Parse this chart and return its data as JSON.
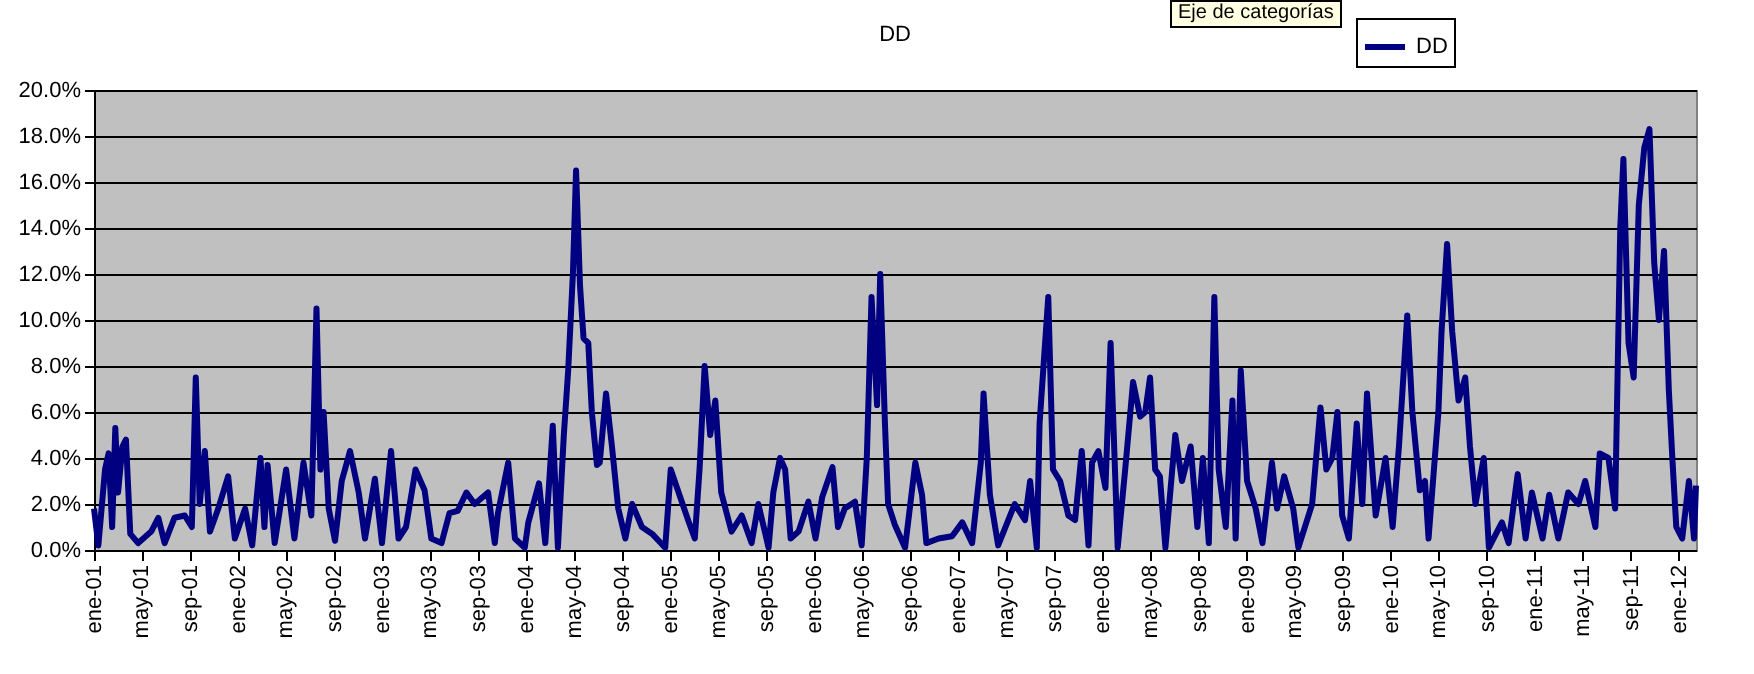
{
  "chart_data": {
    "type": "line",
    "title": "DD",
    "annotations": [
      "Eje de categorías"
    ],
    "x": [
      "2001-01-01",
      "2001-01-12",
      "2001-01-29",
      "2001-02-07",
      "2001-02-16",
      "2001-02-24",
      "2001-03-03",
      "2001-03-14",
      "2001-03-23",
      "2001-04-03",
      "2001-04-23",
      "2001-05-26",
      "2001-06-13",
      "2001-06-29",
      "2001-07-24",
      "2001-08-19",
      "2001-09-06",
      "2001-09-16",
      "2001-09-26",
      "2001-10-09",
      "2001-10-22",
      "2001-11-12",
      "2001-12-07",
      "2001-12-24",
      "2002-01-19",
      "2002-02-06",
      "2002-02-27",
      "2002-03-09",
      "2002-03-17",
      "2002-04-04",
      "2002-05-03",
      "2002-05-24",
      "2002-06-16",
      "2002-07-06",
      "2002-07-19",
      "2002-07-29",
      "2002-08-06",
      "2002-08-19",
      "2002-09-04",
      "2002-09-21",
      "2002-10-12",
      "2002-11-03",
      "2002-11-19",
      "2002-12-14",
      "2003-01-01",
      "2003-01-24",
      "2003-02-12",
      "2003-03-03",
      "2003-03-27",
      "2003-04-19",
      "2003-05-06",
      "2003-06-01",
      "2003-06-21",
      "2003-07-12",
      "2003-08-03",
      "2003-08-24",
      "2003-09-27",
      "2003-10-14",
      "2003-10-22",
      "2003-11-17",
      "2003-12-04",
      "2003-12-29",
      "2004-01-07",
      "2004-02-03",
      "2004-02-19",
      "2004-03-09",
      "2004-03-22",
      "2004-04-06",
      "2004-04-17",
      "2004-04-29",
      "2004-05-07",
      "2004-05-17",
      "2004-05-26",
      "2004-06-07",
      "2004-06-16",
      "2004-06-29",
      "2004-07-06",
      "2004-07-22",
      "2004-08-06",
      "2004-08-22",
      "2004-09-09",
      "2004-09-26",
      "2004-10-21",
      "2004-11-16",
      "2004-12-19",
      "2005-01-02",
      "2005-01-22",
      "2005-02-17",
      "2005-03-04",
      "2005-03-16",
      "2005-03-29",
      "2005-04-12",
      "2005-04-25",
      "2005-05-10",
      "2005-06-05",
      "2005-07-01",
      "2005-07-26",
      "2005-08-12",
      "2005-09-07",
      "2005-09-19",
      "2005-10-06",
      "2005-10-19",
      "2005-11-02",
      "2005-11-22",
      "2005-12-17",
      "2006-01-04",
      "2006-01-21",
      "2006-02-16",
      "2006-03-02",
      "2006-03-19",
      "2006-04-14",
      "2006-05-01",
      "2006-05-14",
      "2006-05-26",
      "2006-06-09",
      "2006-06-17",
      "2006-06-29",
      "2006-07-07",
      "2006-07-24",
      "2006-08-19",
      "2006-09-14",
      "2006-10-01",
      "2006-10-12",
      "2006-11-12",
      "2006-12-16",
      "2007-01-11",
      "2007-02-05",
      "2007-02-27",
      "2007-03-06",
      "2007-03-22",
      "2007-04-12",
      "2007-05-24",
      "2007-06-19",
      "2007-07-02",
      "2007-07-19",
      "2007-07-26",
      "2007-08-17",
      "2007-08-29",
      "2007-09-16",
      "2007-10-07",
      "2007-10-24",
      "2007-11-10",
      "2007-11-27",
      "2007-12-06",
      "2007-12-22",
      "2008-01-09",
      "2008-01-22",
      "2008-02-09",
      "2008-02-28",
      "2008-03-19",
      "2008-04-06",
      "2008-04-19",
      "2008-05-01",
      "2008-05-14",
      "2008-05-26",
      "2008-06-09",
      "2008-07-04",
      "2008-07-21",
      "2008-08-12",
      "2008-08-29",
      "2008-09-12",
      "2008-09-27",
      "2008-10-11",
      "2008-10-22",
      "2008-11-09",
      "2008-11-26",
      "2008-12-04",
      "2008-12-17",
      "2009-01-02",
      "2009-01-24",
      "2009-02-10",
      "2009-03-06",
      "2009-03-19",
      "2009-04-06",
      "2009-04-29",
      "2009-05-12",
      "2009-06-16",
      "2009-07-07",
      "2009-07-22",
      "2009-08-06",
      "2009-08-19",
      "2009-08-31",
      "2009-09-17",
      "2009-10-07",
      "2009-10-21",
      "2009-11-02",
      "2009-11-24",
      "2009-12-19",
      "2010-01-06",
      "2010-01-22",
      "2010-02-12",
      "2010-02-25",
      "2010-03-16",
      "2010-03-29",
      "2010-04-07",
      "2010-05-02",
      "2010-05-10",
      "2010-05-24",
      "2010-06-06",
      "2010-06-22",
      "2010-07-09",
      "2010-07-21",
      "2010-08-04",
      "2010-08-25",
      "2010-09-07",
      "2010-10-10",
      "2010-10-27",
      "2010-11-19",
      "2010-12-09",
      "2010-12-25",
      "2011-01-21",
      "2011-02-07",
      "2011-03-02",
      "2011-03-27",
      "2011-04-22",
      "2011-05-09",
      "2011-06-04",
      "2011-06-15",
      "2011-07-07",
      "2011-07-24",
      "2011-08-06",
      "2011-08-14",
      "2011-08-27",
      "2011-09-09",
      "2011-09-22",
      "2011-10-06",
      "2011-10-19",
      "2011-10-31",
      "2011-11-12",
      "2011-11-25",
      "2011-12-07",
      "2011-12-16",
      "2011-12-26",
      "2012-01-10",
      "2012-01-27",
      "2012-02-09",
      "2012-02-14"
    ],
    "series": [
      {
        "name": "DD",
        "color": "#000080",
        "values": [
          1.8,
          0.2,
          3.5,
          4.2,
          1.0,
          5.3,
          2.5,
          4.5,
          4.8,
          0.7,
          0.3,
          0.8,
          1.4,
          0.3,
          1.4,
          1.5,
          1.0,
          7.5,
          2.0,
          4.3,
          0.8,
          1.8,
          3.2,
          0.5,
          1.8,
          0.2,
          4.0,
          1.0,
          3.7,
          0.3,
          3.5,
          0.5,
          3.8,
          1.5,
          10.5,
          3.5,
          6.0,
          1.8,
          0.4,
          3.0,
          4.3,
          2.5,
          0.5,
          3.1,
          0.3,
          4.3,
          0.5,
          1.0,
          3.5,
          2.6,
          0.5,
          0.3,
          1.6,
          1.7,
          2.5,
          2.0,
          2.5,
          0.3,
          1.6,
          3.8,
          0.5,
          0.1,
          1.2,
          2.9,
          0.3,
          5.4,
          0.1,
          5.0,
          7.8,
          12.0,
          16.5,
          11.5,
          9.2,
          9.0,
          6.0,
          3.7,
          3.8,
          6.8,
          4.5,
          1.8,
          0.5,
          2.0,
          1.0,
          0.7,
          0.1,
          3.5,
          2.5,
          1.2,
          0.5,
          3.5,
          8.0,
          5.0,
          6.5,
          2.5,
          0.8,
          1.5,
          0.3,
          2.0,
          0.1,
          2.5,
          4.0,
          3.5,
          0.5,
          0.8,
          2.1,
          0.5,
          2.3,
          3.6,
          1.0,
          1.8,
          2.1,
          0.2,
          4.0,
          11.0,
          6.3,
          12.0,
          5.5,
          2.0,
          1.1,
          0.1,
          3.8,
          2.4,
          0.3,
          0.5,
          0.6,
          1.2,
          0.3,
          3.8,
          6.8,
          2.4,
          0.2,
          2.0,
          1.3,
          3.0,
          0.1,
          5.5,
          11.0,
          3.5,
          3.0,
          1.5,
          1.3,
          4.3,
          0.2,
          3.8,
          4.3,
          2.7,
          9.0,
          0.1,
          3.5,
          7.3,
          5.8,
          6.0,
          7.5,
          3.5,
          3.2,
          0.1,
          5.0,
          3.0,
          4.5,
          1.0,
          4.0,
          0.3,
          11.0,
          3.5,
          1.0,
          6.5,
          0.5,
          7.8,
          3.0,
          1.8,
          0.3,
          3.8,
          1.8,
          3.2,
          1.8,
          0.1,
          2.0,
          6.2,
          3.5,
          4.0,
          6.0,
          1.5,
          0.5,
          5.5,
          2.0,
          6.8,
          1.5,
          4.0,
          1.0,
          4.5,
          10.2,
          6.0,
          2.6,
          3.0,
          0.5,
          6.0,
          9.5,
          13.3,
          9.5,
          6.5,
          7.5,
          4.5,
          2.0,
          4.0,
          0.1,
          1.2,
          0.3,
          3.3,
          0.5,
          2.5,
          0.5,
          2.4,
          0.5,
          2.5,
          2.0,
          3.0,
          1.0,
          4.2,
          4.0,
          1.8,
          14.0,
          17.0,
          9.0,
          7.5,
          15.0,
          17.5,
          18.3,
          12.5,
          10.0,
          13.0,
          7.0,
          4.0,
          1.0,
          0.5,
          3.0,
          0.5,
          2.8
        ]
      }
    ],
    "xlim": [
      "2001-01-01",
      "2012-02-14"
    ],
    "xticks": [
      {
        "value": "2001-01",
        "label": "ene-01"
      },
      {
        "value": "2001-05",
        "label": "may-01"
      },
      {
        "value": "2001-09",
        "label": "sep-01"
      },
      {
        "value": "2002-01",
        "label": "ene-02"
      },
      {
        "value": "2002-05",
        "label": "may-02"
      },
      {
        "value": "2002-09",
        "label": "sep-02"
      },
      {
        "value": "2003-01",
        "label": "ene-03"
      },
      {
        "value": "2003-05",
        "label": "may-03"
      },
      {
        "value": "2003-09",
        "label": "sep-03"
      },
      {
        "value": "2004-01",
        "label": "ene-04"
      },
      {
        "value": "2004-05",
        "label": "may-04"
      },
      {
        "value": "2004-09",
        "label": "sep-04"
      },
      {
        "value": "2005-01",
        "label": "ene-05"
      },
      {
        "value": "2005-05",
        "label": "may-05"
      },
      {
        "value": "2005-09",
        "label": "sep-05"
      },
      {
        "value": "2006-01",
        "label": "ene-06"
      },
      {
        "value": "2006-05",
        "label": "may-06"
      },
      {
        "value": "2006-09",
        "label": "sep-06"
      },
      {
        "value": "2007-01",
        "label": "ene-07"
      },
      {
        "value": "2007-05",
        "label": "may-07"
      },
      {
        "value": "2007-09",
        "label": "sep-07"
      },
      {
        "value": "2008-01",
        "label": "ene-08"
      },
      {
        "value": "2008-05",
        "label": "may-08"
      },
      {
        "value": "2008-09",
        "label": "sep-08"
      },
      {
        "value": "2009-01",
        "label": "ene-09"
      },
      {
        "value": "2009-05",
        "label": "may-09"
      },
      {
        "value": "2009-09",
        "label": "sep-09"
      },
      {
        "value": "2010-01",
        "label": "ene-10"
      },
      {
        "value": "2010-05",
        "label": "may-10"
      },
      {
        "value": "2010-09",
        "label": "sep-10"
      },
      {
        "value": "2011-01",
        "label": "ene-11"
      },
      {
        "value": "2011-05",
        "label": "may-11"
      },
      {
        "value": "2011-09",
        "label": "sep-11"
      },
      {
        "value": "2012-01",
        "label": "ene-12"
      }
    ],
    "ylim": [
      0,
      20
    ],
    "yticks": [
      {
        "value": 0,
        "label": "0.0%"
      },
      {
        "value": 2,
        "label": "2.0%"
      },
      {
        "value": 4,
        "label": "4.0%"
      },
      {
        "value": 6,
        "label": "6.0%"
      },
      {
        "value": 8,
        "label": "8.0%"
      },
      {
        "value": 10,
        "label": "10.0%"
      },
      {
        "value": 12,
        "label": "12.0%"
      },
      {
        "value": 14,
        "label": "14.0%"
      },
      {
        "value": 16,
        "label": "16.0%"
      },
      {
        "value": 18,
        "label": "18.0%"
      },
      {
        "value": 20,
        "label": "20.0%"
      }
    ],
    "grid": "y",
    "legend": "top right"
  }
}
